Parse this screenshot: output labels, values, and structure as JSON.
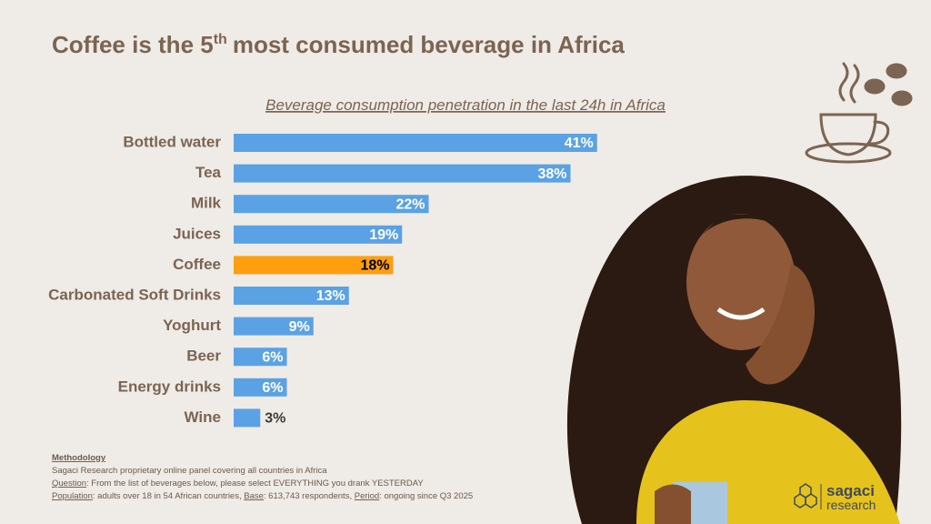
{
  "title": {
    "before": "Coffee is the 5",
    "superscript": "th",
    "after": "most consumed beverage in Africa"
  },
  "chart_data": {
    "type": "bar",
    "orientation": "horizontal",
    "subtitle": "Beverage consumption penetration in the last 24h in Africa",
    "categories": [
      "Bottled water",
      "Tea",
      "Milk",
      "Juices",
      "Coffee",
      "Carbonated Soft Drinks",
      "Yoghurt",
      "Beer",
      "Energy drinks",
      "Wine"
    ],
    "values": [
      41,
      38,
      22,
      19,
      18,
      13,
      9,
      6,
      6,
      3
    ],
    "value_labels": [
      "41%",
      "38%",
      "22%",
      "19%",
      "18%",
      "13%",
      "9%",
      "6%",
      "6%",
      "3%"
    ],
    "colors": [
      "#5aa2e4",
      "#5aa2e4",
      "#5aa2e4",
      "#5aa2e4",
      "#ff9e0f",
      "#5aa2e4",
      "#5aa2e4",
      "#5aa2e4",
      "#5aa2e4",
      "#5aa2e4"
    ],
    "value_label_colors": [
      "#ffffff",
      "#ffffff",
      "#ffffff",
      "#ffffff",
      "#000000",
      "#ffffff",
      "#ffffff",
      "#ffffff",
      "#ffffff",
      "#ffffff"
    ]
  },
  "methodology": {
    "heading": "Methodology",
    "panel": "Sagaci Research proprietary online panel covering all countries in Africa",
    "question_label": "Question",
    "question": ": From the list of beverages below, please select EVERYTHING you drank YESTERDAY",
    "population_label": "Population",
    "population": ": adults over 18 in 54 African countries, ",
    "base_label": "Base",
    "base": ": 613,743 respondents, ",
    "period_label": "Period",
    "period": ": ongoing since Q3 2025"
  },
  "logo": {
    "line1": "sagaci",
    "line2": "research"
  }
}
